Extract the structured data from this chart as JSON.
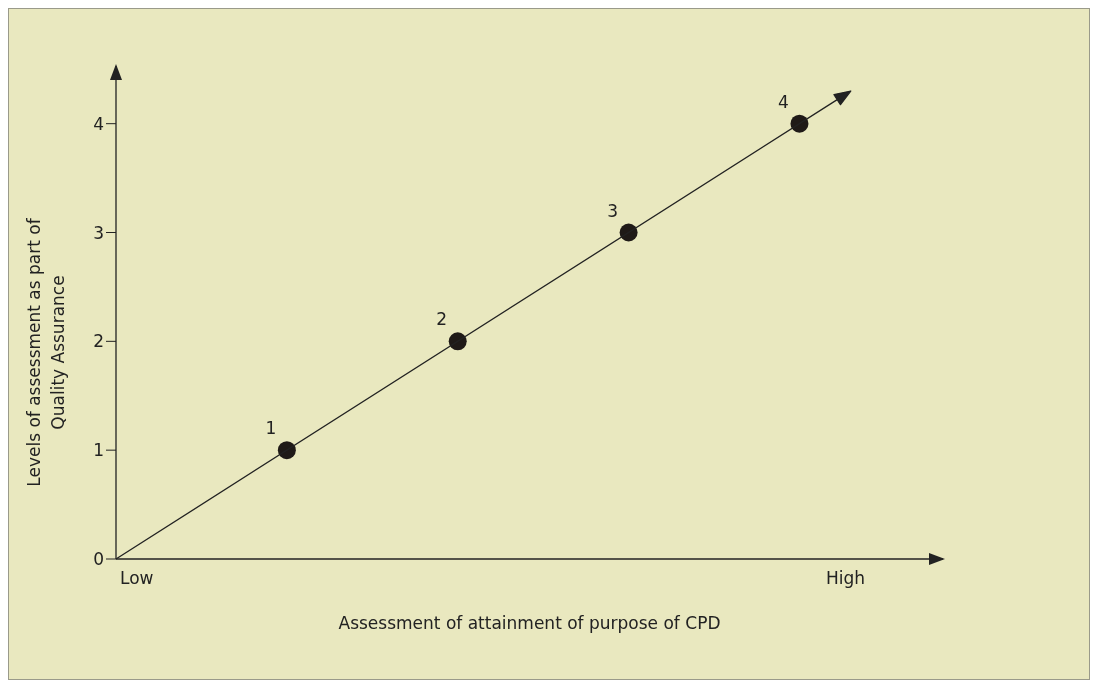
{
  "chart_data": {
    "type": "scatter",
    "xlabel": "Assessment of attainment of purpose of CPD",
    "ylabel": "Levels of assessment as part of\nQuality Assurance",
    "annotations": [
      "Low",
      "High"
    ],
    "categories": [
      null,
      null,
      null,
      null
    ],
    "ylim": [
      0,
      4.53
    ],
    "yticks": [
      0,
      1,
      2,
      3,
      4
    ],
    "data_labels": true,
    "marker": "circle",
    "series": [
      {
        "color": "#1f1a17",
        "values": [
          1,
          2,
          3,
          4
        ]
      }
    ]
  }
}
